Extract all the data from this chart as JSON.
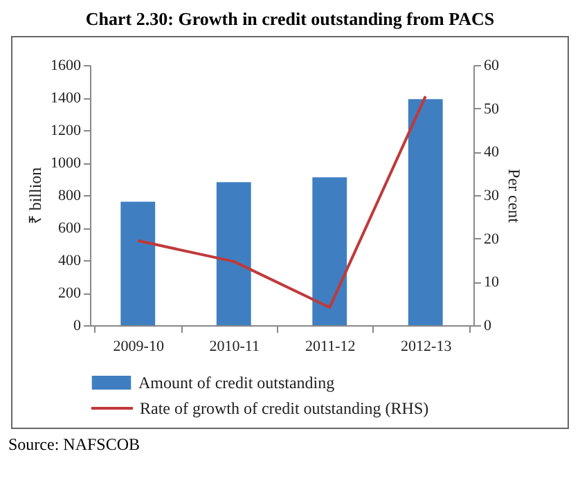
{
  "chart_data": {
    "type": "bar",
    "title": "Chart 2.30: Growth in credit outstanding from PACS",
    "categories": [
      "2009-10",
      "2010-11",
      "2011-12",
      "2012-13"
    ],
    "series": [
      {
        "name": "Amount of credit outstanding",
        "color": "#3f7fc1",
        "values": [
          760,
          880,
          910,
          1390
        ]
      },
      {
        "name": "Rate of growth of credit outstanding (RHS)",
        "type": "line",
        "axis": "y2",
        "color": "#c0393b",
        "values": [
          19.5,
          14.7,
          4.1,
          52.8
        ]
      }
    ],
    "ylabel": "₹ billion",
    "y2label": "Per cent",
    "ylim": [
      0,
      1600
    ],
    "yticks": [
      0,
      200,
      400,
      600,
      800,
      1000,
      1200,
      1400,
      1600
    ],
    "y2lim": [
      0,
      60
    ],
    "y2ticks": [
      0,
      10,
      20,
      30,
      40,
      50,
      60
    ],
    "grid": false,
    "legend": "bottom",
    "marker": "none",
    "line_style": "solid",
    "annotations": [
      "Source: NAFSCOB"
    ]
  }
}
